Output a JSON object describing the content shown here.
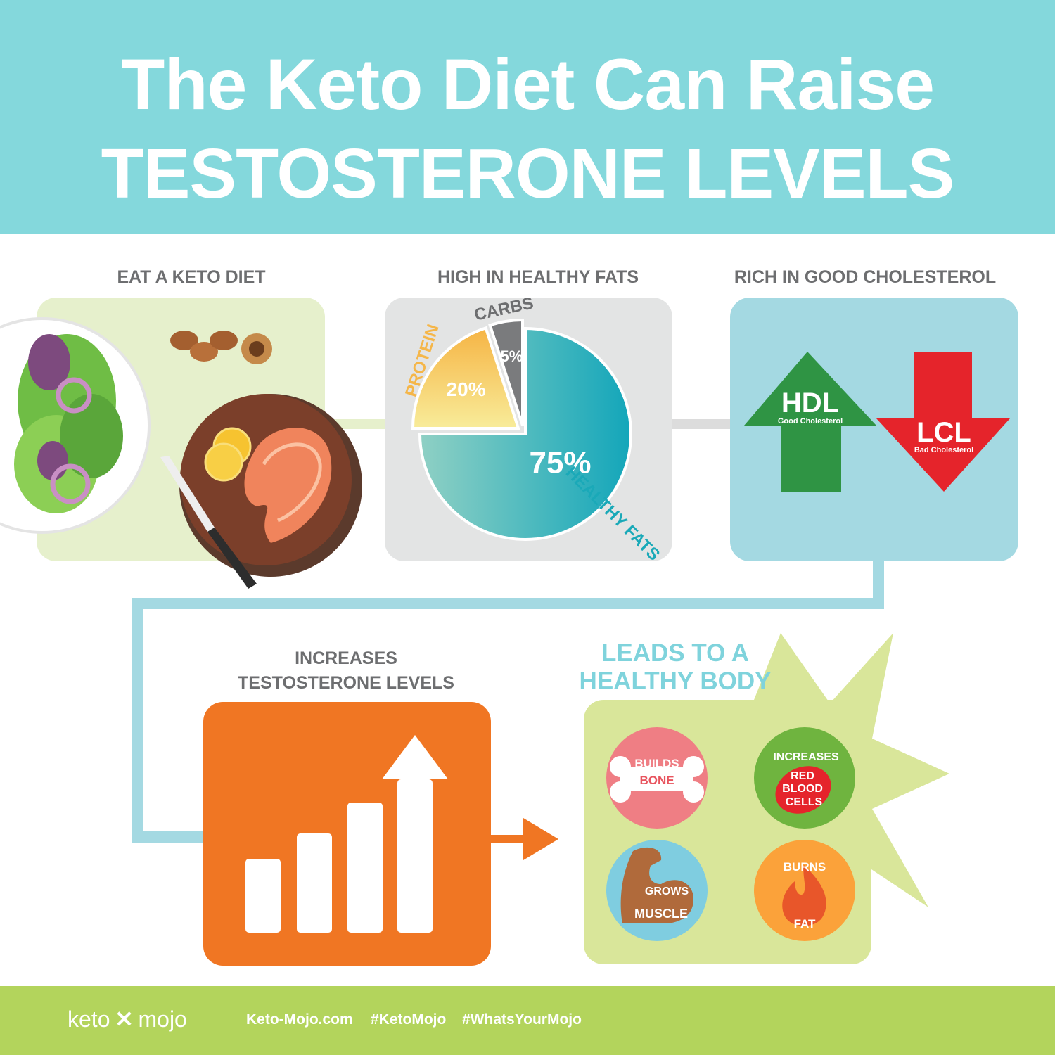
{
  "header": {
    "title_line1": "The Keto Diet Can Raise",
    "title_line2": "TESTOSTERONE LEVELS"
  },
  "steps": {
    "eat": "EAT A KETO DIET",
    "fats": "HIGH IN HEALTHY FATS",
    "cholesterol": "RICH IN GOOD CHOLESTEROL",
    "testosterone_line1": "INCREASES",
    "testosterone_line2": "TESTOSTERONE LEVELS",
    "healthy_line1": "LEADS TO A",
    "healthy_line2": "HEALTHY BODY"
  },
  "chart_data": {
    "type": "pie",
    "slices": [
      {
        "label": "HEALTHY FATS",
        "value": 75,
        "value_label": "75%",
        "color": "#17a9b9"
      },
      {
        "label": "PROTEIN",
        "value": 20,
        "value_label": "20%",
        "color": "#f5b649"
      },
      {
        "label": "CARBS",
        "value": 5,
        "value_label": "5%",
        "color": "#7a7b7d"
      }
    ]
  },
  "cholesterol": {
    "hdl_label": "HDL",
    "hdl_sub": "Good Cholesterol",
    "hdl_color": "#2f9444",
    "ldl_label": "LCL",
    "ldl_sub": "Bad Cholesterol",
    "ldl_color": "#e5242b"
  },
  "benefits": {
    "bone_line1": "BUILDS",
    "bone_line2": "BONE",
    "rbc_line1": "INCREASES",
    "rbc_line2": "RED",
    "rbc_line3": "BLOOD",
    "rbc_line4": "CELLS",
    "muscle_line1": "GROWS",
    "muscle_line2": "MUSCLE",
    "fat_line1": "BURNS",
    "fat_line2": "FAT"
  },
  "colors": {
    "header": "#84d8dc",
    "footer": "#b3d45c",
    "orange": "#f07623",
    "connector": "#a4d9e2"
  },
  "footer": {
    "brand_left": "keto",
    "brand_right": "mojo",
    "website": "Keto-Mojo.com",
    "hashtag1": "#KetoMojo",
    "hashtag2": "#WhatsYourMojo"
  }
}
